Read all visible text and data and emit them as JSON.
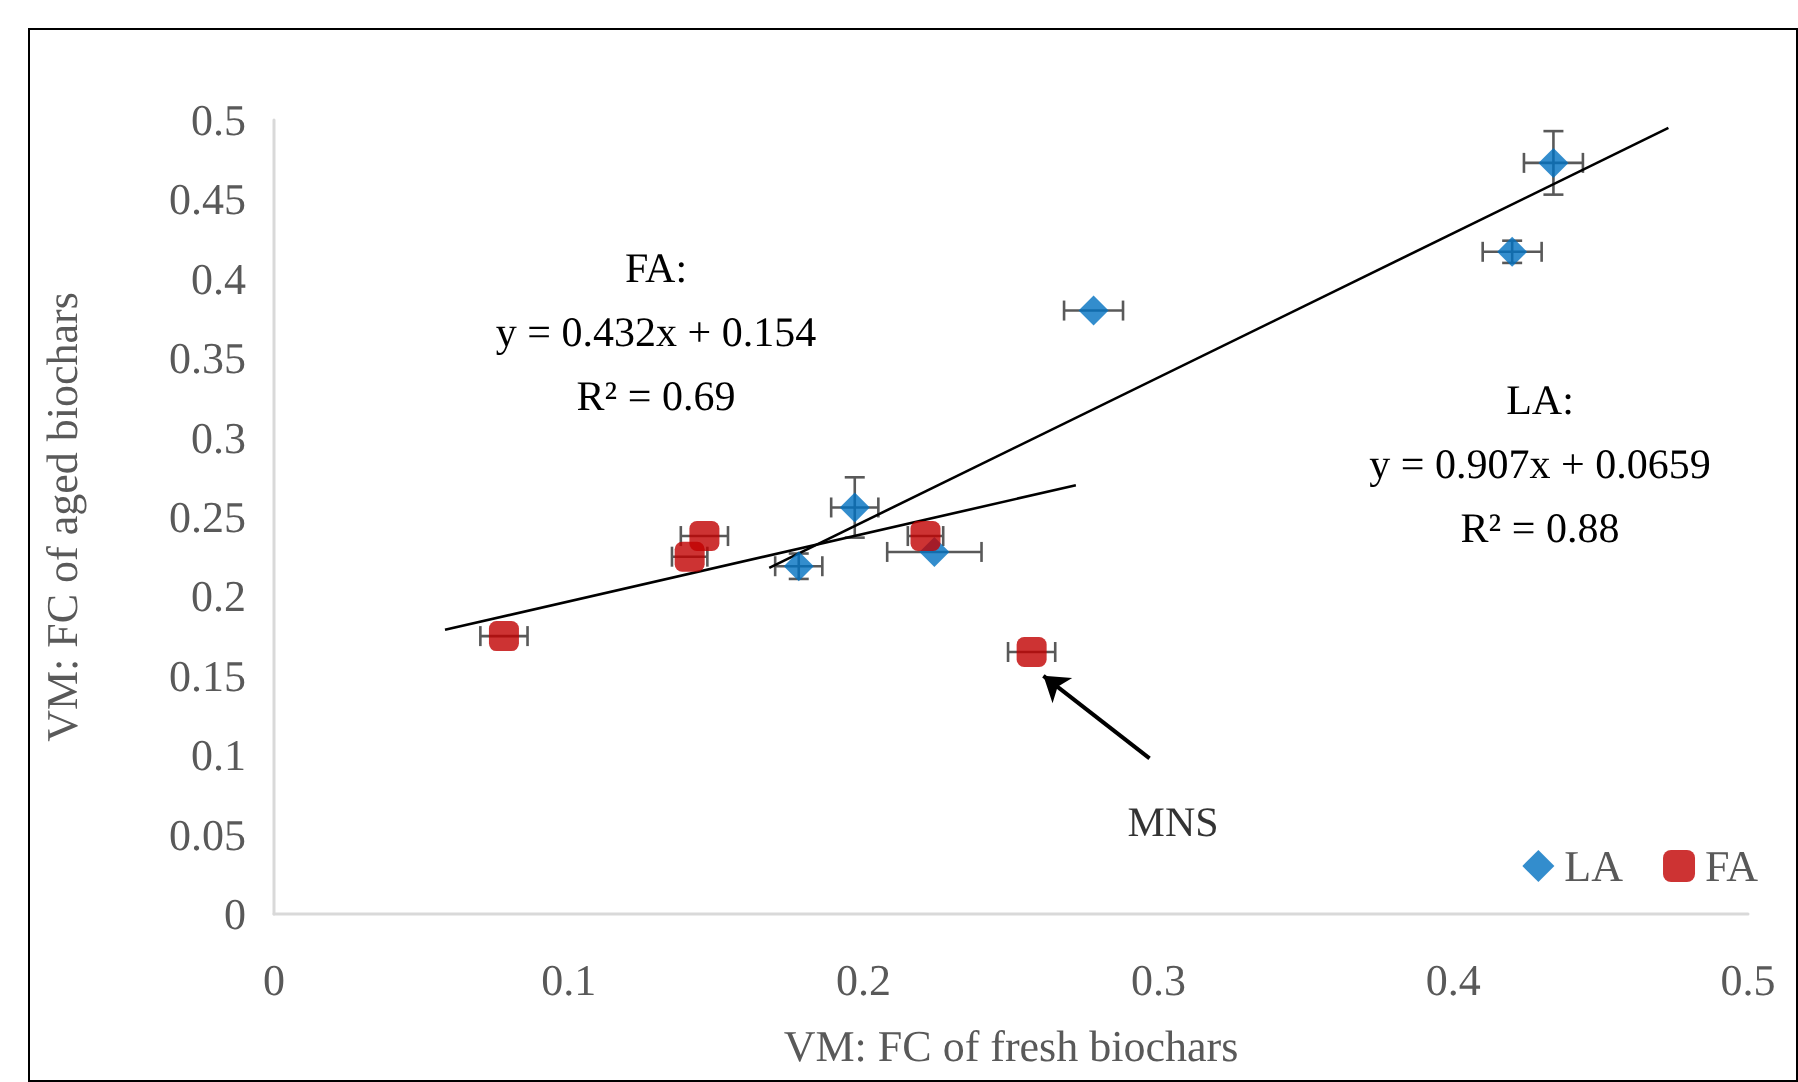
{
  "chart_data": {
    "type": "scatter",
    "xlabel": "VM: FC of fresh biochars",
    "ylabel": "VM: FC of aged biochars",
    "xlim": [
      0,
      0.5
    ],
    "xticks": [
      0,
      0.1,
      0.2,
      0.3,
      0.4,
      0.5
    ],
    "ylim": [
      0,
      0.5
    ],
    "yticks": [
      0,
      0.05,
      0.1,
      0.15,
      0.2,
      0.25,
      0.3,
      0.35,
      0.4,
      0.45,
      0.5
    ],
    "grid": false,
    "legend": "bottom right",
    "annotations": [
      "FA:\ny = 0.432x + 0.154\nR² = 0.69",
      "LA:\ny = 0.907x + 0.0659\nR² = 0.88",
      {
        "text": "MNS",
        "x": 0.261,
        "y": 0.15
      }
    ],
    "series": [
      {
        "name": "LA",
        "color": "#0070c0",
        "marker": "diamond",
        "x": [
          0.178,
          0.197,
          0.224,
          0.278,
          0.42,
          0.434
        ],
        "values": [
          0.219,
          0.256,
          0.228,
          0.38,
          0.417,
          0.473
        ],
        "errors": [
          0.008,
          0.019,
          null,
          null,
          0.007,
          0.02
        ],
        "xerrors": [
          0.008,
          0.008,
          0.016,
          0.01,
          0.01,
          0.01
        ]
      },
      {
        "name": "FA",
        "color": "#c00000",
        "marker": "square",
        "x": [
          0.078,
          0.141,
          0.146,
          0.221,
          0.257
        ],
        "values": [
          0.175,
          0.225,
          0.238,
          0.238,
          0.165
        ],
        "errors": [
          null,
          null,
          null,
          null,
          null
        ],
        "xerrors": [
          0.008,
          0.006,
          0.008,
          0.006,
          0.008
        ]
      },
      {
        "type": "line",
        "color": "#000000",
        "marker": "none",
        "x": [
          0.058,
          0.272
        ],
        "values": [
          0.179,
          0.27
        ]
      },
      {
        "type": "line",
        "color": "#000000",
        "marker": "none",
        "x": [
          0.168,
          0.473
        ],
        "values": [
          0.218,
          0.495
        ]
      }
    ]
  }
}
